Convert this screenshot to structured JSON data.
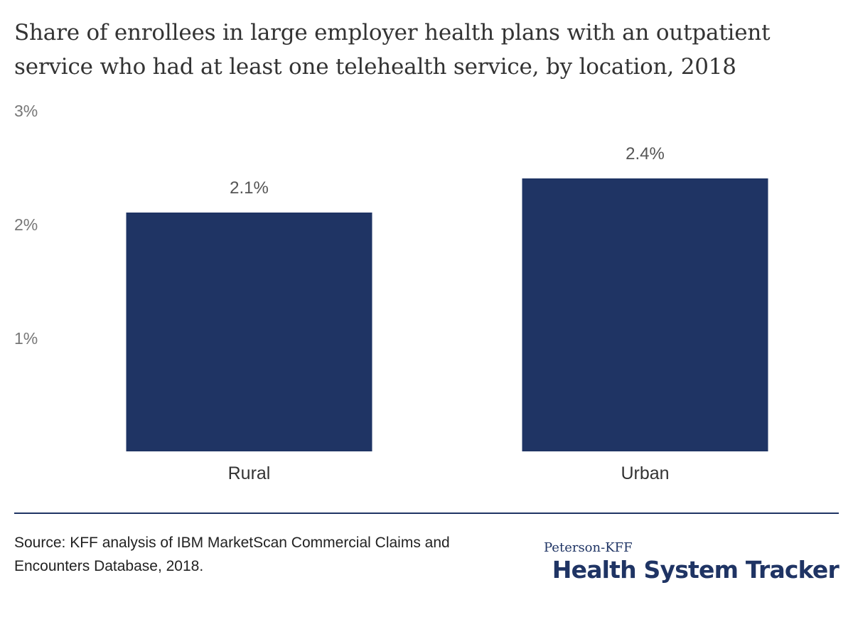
{
  "chart_data": {
    "type": "bar",
    "title": "Share of enrollees in large employer health plans with an outpatient service who had at least one telehealth service, by location, 2018",
    "categories": [
      "Rural",
      "Urban"
    ],
    "values": [
      2.1,
      2.4
    ],
    "data_labels": [
      "2.1%",
      "2.4%"
    ],
    "y_ticks": [
      {
        "value": 1,
        "label": "1%"
      },
      {
        "value": 2,
        "label": "2%"
      },
      {
        "value": 3,
        "label": "3%"
      }
    ],
    "ylim": [
      0,
      3
    ],
    "xlabel": "",
    "ylabel": "",
    "grid": false,
    "legend": "none",
    "bar_color": "#1f3464"
  },
  "footer": {
    "source_line1": "Source: KFF analysis of IBM MarketScan Commercial Claims and",
    "source_line2": "Encounters Database, 2018.",
    "logo_small": "Peterson-KFF",
    "logo_big": "Health System Tracker"
  },
  "colors": {
    "accent": "#1f3464"
  }
}
